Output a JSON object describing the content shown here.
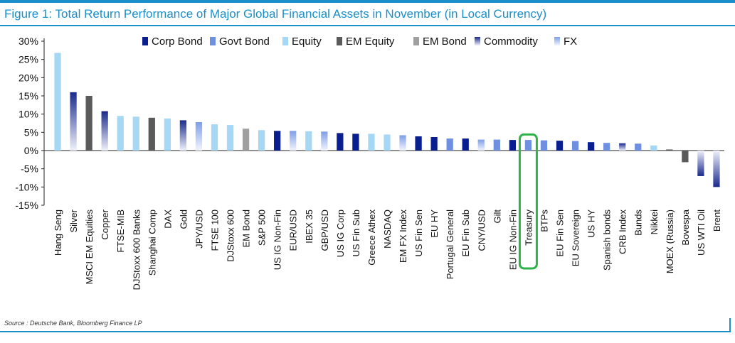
{
  "header": {
    "title": "Figure 1: Total Return Performance of Major Global Financial Assets in November (in Local Currency)"
  },
  "footer": {
    "source": "Source : Deutsche Bank, Bloomberg Finance LP"
  },
  "colors": {
    "Corp Bond": "#0a1f8f",
    "Govt Bond": "#6f8fe0",
    "Equity": "#a6d8f5",
    "EM Equity": "#5a5a5a",
    "EM Bond": "#a0a0a0",
    "Commodity": "#1a2a8c",
    "FX": "#7e9ee8",
    "highlight": "#2db34a"
  },
  "chart_data": {
    "type": "bar",
    "title": "Figure 1: Total Return Performance of Major Global Financial Assets in November (in Local Currency)",
    "xlabel": "",
    "ylabel": "",
    "ylim": [
      -15,
      30
    ],
    "yticks": [
      "-15%",
      "-10%",
      "-5%",
      "0%",
      "5%",
      "10%",
      "15%",
      "20%",
      "25%",
      "30%"
    ],
    "ytick_values": [
      -15,
      -10,
      -5,
      0,
      5,
      10,
      15,
      20,
      25,
      30
    ],
    "grid": false,
    "legend_position": "top",
    "legend": [
      "Corp Bond",
      "Govt Bond",
      "Equity",
      "EM Equity",
      "EM Bond",
      "Commodity",
      "FX"
    ],
    "highlighted": "Treasury",
    "categories": [
      "Hang Seng",
      "Silver",
      "MSCI EM Equities",
      "Copper",
      "FTSE-MIB",
      "DJStoxx 600 Banks",
      "Shanghai Comp",
      "DAX",
      "Gold",
      "JPY/USD",
      "FTSE 100",
      "DJStoxx 600",
      "EM Bond",
      "S&P 500",
      "US IG Non-Fin",
      "EUR/USD",
      "IBEX 35",
      "GBP/USD",
      "US IG Corp",
      "US Fin Sub",
      "Greece Athex",
      "NASDAQ",
      "EM FX Index",
      "US Fin Sen",
      "EU HY",
      "Portugal General",
      "EU Fin Sub",
      "CNY/USD",
      "Gilt",
      "EU IG Non-Fin",
      "Treasury",
      "BTPs",
      "EU Fin Sen",
      "EU Sovereign",
      "US HY",
      "Spanish bonds",
      "CRB Index",
      "Bunds",
      "Nikkei",
      "MOEX (Russia)",
      "Bovespa",
      "US WTI Oil",
      "Brent"
    ],
    "values": [
      26.8,
      16.0,
      15.0,
      10.8,
      9.5,
      9.3,
      9.0,
      8.8,
      8.3,
      7.8,
      7.2,
      7.0,
      6.0,
      5.6,
      5.4,
      5.4,
      5.3,
      5.2,
      4.8,
      4.6,
      4.6,
      4.4,
      4.2,
      3.9,
      3.7,
      3.3,
      3.3,
      3.0,
      3.0,
      2.9,
      2.9,
      2.8,
      2.7,
      2.6,
      2.3,
      2.1,
      2.0,
      1.9,
      1.4,
      0.3,
      -3.2,
      -7.0,
      -10.0
    ],
    "asset_class": [
      "Equity",
      "Commodity",
      "EM Equity",
      "Commodity",
      "Equity",
      "Equity",
      "EM Equity",
      "Equity",
      "Commodity",
      "FX",
      "Equity",
      "Equity",
      "EM Bond",
      "Equity",
      "Corp Bond",
      "FX",
      "Equity",
      "FX",
      "Corp Bond",
      "Corp Bond",
      "Equity",
      "Equity",
      "FX",
      "Corp Bond",
      "Corp Bond",
      "Govt Bond",
      "Corp Bond",
      "FX",
      "Govt Bond",
      "Corp Bond",
      "Govt Bond",
      "Govt Bond",
      "Corp Bond",
      "Govt Bond",
      "Corp Bond",
      "Govt Bond",
      "Commodity",
      "Govt Bond",
      "Equity",
      "EM Equity",
      "EM Equity",
      "Commodity",
      "Commodity"
    ]
  }
}
